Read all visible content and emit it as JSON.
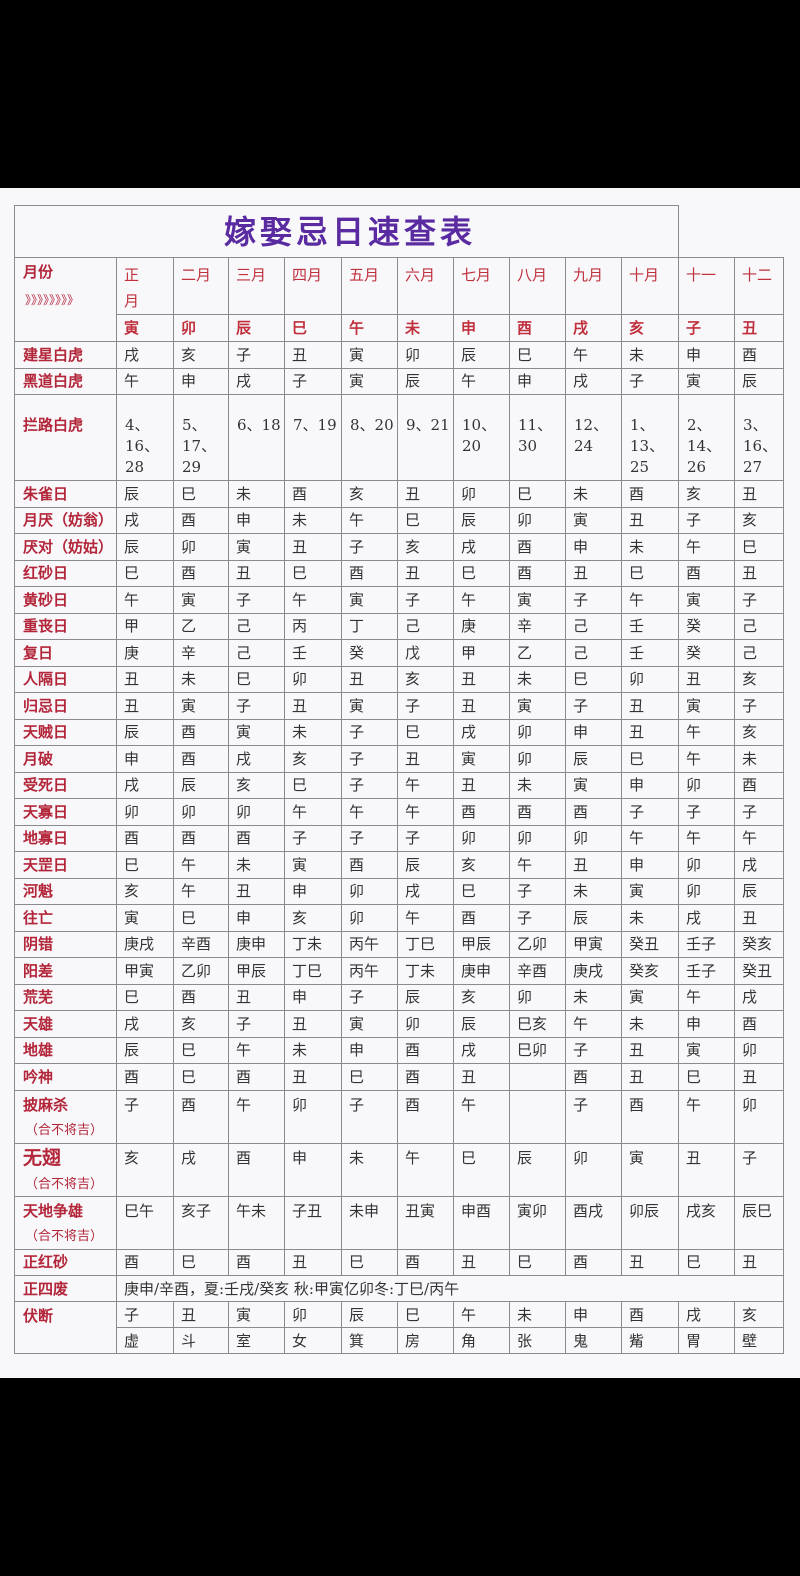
{
  "title": "嫁娶忌日速查表",
  "header": {
    "label": "月份",
    "arrows": "》》》》》》》》",
    "months": [
      "正\n月",
      "二月",
      "三月",
      "四月",
      "五月",
      "六月",
      "七月",
      "八月",
      "九月",
      "十月",
      "十一",
      "十二"
    ],
    "branches": [
      "寅",
      "卯",
      "辰",
      "巳",
      "午",
      "未",
      "申",
      "酉",
      "戌",
      "亥",
      "子",
      "丑"
    ]
  },
  "rows": [
    {
      "label": "建星白虎",
      "values": [
        "戌",
        "亥",
        "子",
        "丑",
        "寅",
        "卯",
        "辰",
        "巳",
        "午",
        "未",
        "申",
        "酉"
      ]
    },
    {
      "label": "黑道白虎",
      "values": [
        "午",
        "申",
        "戌",
        "子",
        "寅",
        "辰",
        "午",
        "申",
        "戌",
        "子",
        "寅",
        "辰"
      ]
    },
    {
      "label": "拦路白虎",
      "values": [
        "4、16、28",
        "5、17、29",
        "6、18",
        "7、19",
        "8、20",
        "9、21",
        "10、20",
        "11、30",
        "12、24",
        "1、13、25",
        "2、14、26",
        "3、16、27"
      ]
    },
    {
      "label": "朱雀日",
      "values": [
        "辰",
        "巳",
        "未",
        "酉",
        "亥",
        "丑",
        "卯",
        "巳",
        "未",
        "酉",
        "亥",
        "丑"
      ]
    },
    {
      "label": "月厌（妨翁）",
      "values": [
        "戌",
        "酉",
        "申",
        "未",
        "午",
        "巳",
        "辰",
        "卯",
        "寅",
        "丑",
        "子",
        "亥"
      ]
    },
    {
      "label": "厌对（妨姑）",
      "values": [
        "辰",
        "卯",
        "寅",
        "丑",
        "子",
        "亥",
        "戌",
        "酉",
        "申",
        "未",
        "午",
        "巳"
      ]
    },
    {
      "label": "红砂日",
      "values": [
        "巳",
        "酉",
        "丑",
        "巳",
        "酉",
        "丑",
        "巳",
        "酉",
        "丑",
        "巳",
        "酉",
        "丑"
      ]
    },
    {
      "label": "黄砂日",
      "values": [
        "午",
        "寅",
        "子",
        "午",
        "寅",
        "子",
        "午",
        "寅",
        "子",
        "午",
        "寅",
        "子"
      ]
    },
    {
      "label": "重丧日",
      "values": [
        "甲",
        "乙",
        "己",
        "丙",
        "丁",
        "己",
        "庚",
        "辛",
        "己",
        "壬",
        "癸",
        "己"
      ]
    },
    {
      "label": "复日",
      "values": [
        "庚",
        "辛",
        "己",
        "壬",
        "癸",
        "戊",
        "甲",
        "乙",
        "己",
        "壬",
        "癸",
        "己"
      ]
    },
    {
      "label": "人隔日",
      "values": [
        "丑",
        "未",
        "巳",
        "卯",
        "丑",
        "亥",
        "丑",
        "未",
        "巳",
        "卯",
        "丑",
        "亥"
      ]
    },
    {
      "label": "归忌日",
      "values": [
        "丑",
        "寅",
        "子",
        "丑",
        "寅",
        "子",
        "丑",
        "寅",
        "子",
        "丑",
        "寅",
        "子"
      ]
    },
    {
      "label": "天贼日",
      "values": [
        "辰",
        "酉",
        "寅",
        "未",
        "子",
        "巳",
        "戌",
        "卯",
        "申",
        "丑",
        "午",
        "亥"
      ]
    },
    {
      "label": "月破",
      "values": [
        "申",
        "酉",
        "戌",
        "亥",
        "子",
        "丑",
        "寅",
        "卯",
        "辰",
        "巳",
        "午",
        "未"
      ]
    },
    {
      "label": "受死日",
      "values": [
        "戌",
        "辰",
        "亥",
        "巳",
        "子",
        "午",
        "丑",
        "未",
        "寅",
        "申",
        "卯",
        "酉"
      ]
    },
    {
      "label": "天寡日",
      "values": [
        "卯",
        "卯",
        "卯",
        "午",
        "午",
        "午",
        "酉",
        "酉",
        "酉",
        "子",
        "子",
        "子"
      ]
    },
    {
      "label": "地寡日",
      "values": [
        "酉",
        "酉",
        "酉",
        "子",
        "子",
        "子",
        "卯",
        "卯",
        "卯",
        "午",
        "午",
        "午"
      ]
    },
    {
      "label": "天罡日",
      "values": [
        "巳",
        "午",
        "未",
        "寅",
        "酉",
        "辰",
        "亥",
        "午",
        "丑",
        "申",
        "卯",
        "戌"
      ]
    },
    {
      "label": "河魁",
      "values": [
        "亥",
        "午",
        "丑",
        "申",
        "卯",
        "戌",
        "巳",
        "子",
        "未",
        "寅",
        "卯",
        "辰"
      ]
    },
    {
      "label": "往亡",
      "values": [
        "寅",
        "巳",
        "申",
        "亥",
        "卯",
        "午",
        "酉",
        "子",
        "辰",
        "未",
        "戌",
        "丑"
      ]
    },
    {
      "label": "阴错",
      "values": [
        "庚戌",
        "辛酉",
        "庚申",
        "丁未",
        "丙午",
        "丁巳",
        "甲辰",
        "乙卯",
        "甲寅",
        "癸丑",
        "壬子",
        "癸亥"
      ]
    },
    {
      "label": "阳差",
      "values": [
        "甲寅",
        "乙卯",
        "甲辰",
        "丁巳",
        "丙午",
        "丁未",
        "庚申",
        "辛酉",
        "庚戌",
        "癸亥",
        "壬子",
        "癸丑"
      ]
    },
    {
      "label": "荒芜",
      "values": [
        "巳",
        "酉",
        "丑",
        "申",
        "子",
        "辰",
        "亥",
        "卯",
        "未",
        "寅",
        "午",
        "戌"
      ]
    },
    {
      "label": "天雄",
      "values": [
        "戌",
        "亥",
        "子",
        "丑",
        "寅",
        "卯",
        "辰",
        "巳亥",
        "午",
        "未",
        "申",
        "酉"
      ]
    },
    {
      "label": "地雄",
      "values": [
        "辰",
        "巳",
        "午",
        "未",
        "申",
        "酉",
        "戌",
        "巳卯",
        "子",
        "丑",
        "寅",
        "卯"
      ]
    },
    {
      "label": "吟神",
      "values": [
        "酉",
        "巳",
        "酉",
        "丑",
        "巳",
        "酉",
        "丑",
        "",
        "酉",
        "丑",
        "巳",
        "丑"
      ]
    },
    {
      "label": "披麻杀",
      "sub": "（合不将吉）",
      "values": [
        "子",
        "酉",
        "午",
        "卯",
        "子",
        "酉",
        "午",
        "",
        "子",
        "酉",
        "午",
        "卯"
      ]
    },
    {
      "label": "无翅",
      "sub": "（合不将吉）",
      "values": [
        "亥",
        "戌",
        "酉",
        "申",
        "未",
        "午",
        "巳",
        "辰",
        "卯",
        "寅",
        "丑",
        "子"
      ]
    },
    {
      "label": "天地争雄",
      "sub": "（合不将吉）",
      "values": [
        "巳午",
        "亥子",
        "午未",
        "子丑",
        "未申",
        "丑寅",
        "申酉",
        "寅卯",
        "酉戌",
        "卯辰",
        "戌亥",
        "辰巳"
      ]
    },
    {
      "label": "正红砂",
      "values": [
        "酉",
        "巳",
        "酉",
        "丑",
        "巳",
        "酉",
        "丑",
        "巳",
        "酉",
        "丑",
        "巳",
        "丑"
      ]
    }
  ],
  "zhengsifei": {
    "label": "正四废",
    "text": "庚申/辛酉，夏:壬戌/癸亥 秋:甲寅亿卯冬:丁巳/丙午"
  },
  "fuduan": {
    "label": "伏断",
    "branches": [
      "子",
      "丑",
      "寅",
      "卯",
      "辰",
      "巳",
      "午",
      "未",
      "申",
      "酉",
      "戌",
      "亥"
    ],
    "mansions": [
      "虚",
      "斗",
      "室",
      "女",
      "箕",
      "房",
      "角",
      "张",
      "鬼",
      "觜",
      "胃",
      "壁"
    ]
  },
  "colors": {
    "title": "#5a2aa0",
    "label": "#b3263a",
    "header": "#c0303d",
    "text": "#333333",
    "border": "#8a8a8f"
  }
}
